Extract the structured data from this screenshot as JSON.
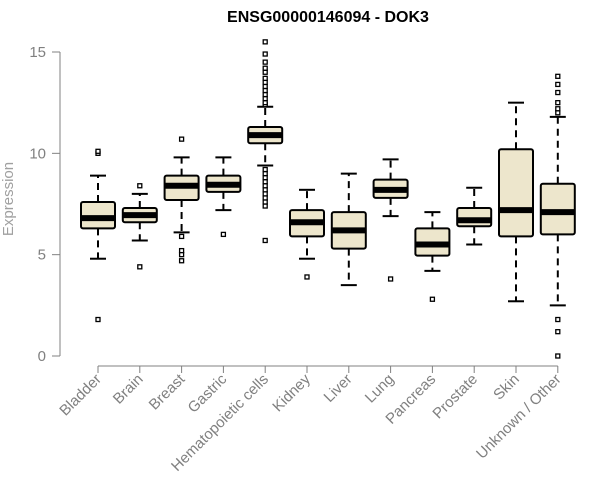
{
  "chart_data": {
    "type": "boxplot",
    "title": "ENSG00000146094 - DOK3",
    "xlabel": "",
    "ylabel": "Expression",
    "ylim": [
      0,
      15
    ],
    "yticks": [
      0,
      5,
      10,
      15
    ],
    "grid": false,
    "colors": {
      "box_fill": "#ede6cc",
      "stroke": "#000000",
      "axis": "#808080"
    },
    "categories": [
      "Bladder",
      "Brain",
      "Breast",
      "Gastric",
      "Hematopoietic cells",
      "Kidney",
      "Liver",
      "Lung",
      "Pancreas",
      "Prostate",
      "Skin",
      "Unknown / Other"
    ],
    "boxes": [
      {
        "name": "Bladder",
        "whisker_low": 4.8,
        "q1": 6.3,
        "median": 6.8,
        "q3": 7.6,
        "whisker_high": 8.9,
        "outliers": [
          1.8,
          10.0,
          10.1
        ]
      },
      {
        "name": "Brain",
        "whisker_low": 5.7,
        "q1": 6.6,
        "median": 6.95,
        "q3": 7.3,
        "whisker_high": 8.0,
        "outliers": [
          4.4,
          8.4
        ]
      },
      {
        "name": "Breast",
        "whisker_low": 6.1,
        "q1": 7.7,
        "median": 8.4,
        "q3": 8.9,
        "whisker_high": 9.8,
        "outliers": [
          10.7,
          5.9,
          5.2,
          5.0,
          4.7
        ]
      },
      {
        "name": "Gastric",
        "whisker_low": 7.2,
        "q1": 8.1,
        "median": 8.45,
        "q3": 8.9,
        "whisker_high": 9.8,
        "outliers": [
          6.0
        ]
      },
      {
        "name": "Hematopoietic cells",
        "whisker_low": 9.4,
        "q1": 10.5,
        "median": 10.9,
        "q3": 11.3,
        "whisker_high": 12.3,
        "outliers": [
          5.7,
          7.4,
          7.6,
          7.8,
          8.0,
          8.2,
          8.4,
          8.6,
          8.8,
          9.0,
          9.2,
          12.4,
          12.5,
          12.7,
          12.9,
          13.1,
          13.3,
          13.5,
          13.7,
          14.0,
          14.2,
          14.5,
          14.9,
          15.5
        ]
      },
      {
        "name": "Kidney",
        "whisker_low": 4.8,
        "q1": 5.9,
        "median": 6.6,
        "q3": 7.2,
        "whisker_high": 8.2,
        "outliers": [
          3.9
        ]
      },
      {
        "name": "Liver",
        "whisker_low": 3.5,
        "q1": 5.3,
        "median": 6.2,
        "q3": 7.1,
        "whisker_high": 9.0,
        "outliers": []
      },
      {
        "name": "Lung",
        "whisker_low": 6.9,
        "q1": 7.8,
        "median": 8.2,
        "q3": 8.7,
        "whisker_high": 9.7,
        "outliers": [
          3.8
        ]
      },
      {
        "name": "Pancreas",
        "whisker_low": 4.2,
        "q1": 4.95,
        "median": 5.5,
        "q3": 6.3,
        "whisker_high": 7.1,
        "outliers": [
          2.8
        ]
      },
      {
        "name": "Prostate",
        "whisker_low": 5.5,
        "q1": 6.4,
        "median": 6.7,
        "q3": 7.3,
        "whisker_high": 8.3,
        "outliers": []
      },
      {
        "name": "Skin",
        "whisker_low": 2.7,
        "q1": 5.9,
        "median": 7.2,
        "q3": 10.2,
        "whisker_high": 12.5,
        "outliers": []
      },
      {
        "name": "Unknown / Other",
        "whisker_low": 2.5,
        "q1": 6.0,
        "median": 7.1,
        "q3": 8.5,
        "whisker_high": 11.8,
        "outliers": [
          0.0,
          1.2,
          1.8,
          12.0,
          12.2,
          12.5,
          13.0,
          13.4,
          13.8
        ]
      }
    ]
  }
}
